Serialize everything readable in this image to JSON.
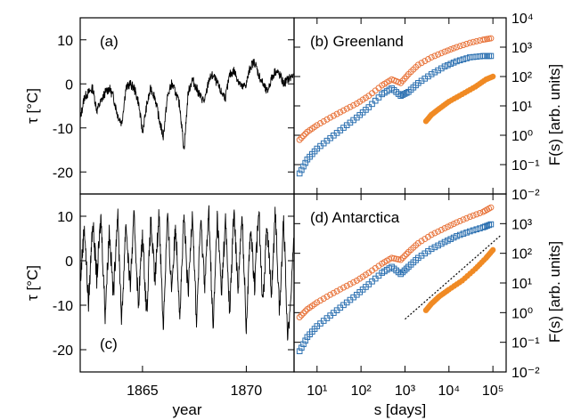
{
  "chart_data": [
    {
      "type": "line",
      "panel": "(a)",
      "xlabel": "",
      "ylabel": "τ [°C]",
      "xlim": [
        1862,
        1872.3
      ],
      "ylim": [
        -25,
        15
      ],
      "yticks": [
        10,
        0,
        -10,
        -20
      ],
      "xticks": [],
      "series": [
        {
          "x": [
            1862.0,
            1862.2,
            1862.4,
            1862.6,
            1862.8,
            1863.0,
            1863.2,
            1863.4,
            1863.6,
            1863.8,
            1864.0,
            1864.2,
            1864.4,
            1864.6,
            1864.8,
            1865.0,
            1865.2,
            1865.4,
            1865.6,
            1865.8,
            1866.0,
            1866.2,
            1866.4,
            1866.6,
            1866.8,
            1867.0,
            1867.2,
            1867.4,
            1867.6,
            1867.8,
            1868.0,
            1868.2,
            1868.4,
            1868.6,
            1868.8,
            1869.0,
            1869.2,
            1869.4,
            1869.6,
            1869.8,
            1870.0,
            1870.2,
            1870.4,
            1870.6,
            1870.8,
            1871.0,
            1871.2,
            1871.4,
            1871.6,
            1871.8,
            1872.0,
            1872.3
          ],
          "y": [
            -8,
            -3,
            -2,
            -1,
            -6,
            -4,
            -2,
            -1,
            -3,
            -7,
            -9,
            -1,
            0,
            -1,
            -4,
            -11,
            -5,
            -1,
            -3,
            -8,
            -12,
            -3,
            0,
            -2,
            -5,
            -15,
            -2,
            1,
            -1,
            -3,
            -4,
            1,
            2,
            0,
            -2,
            -3,
            2,
            3,
            1,
            -1,
            0,
            4,
            5,
            2,
            0,
            -2,
            1,
            3,
            2,
            0,
            1,
            2
          ]
        }
      ]
    },
    {
      "type": "scatter",
      "panel": "(b) Greenland",
      "xlabel": "",
      "ylabel": "F(s) [arb. units]",
      "yscale": "log",
      "xscale": "log",
      "xlim": [
        3,
        200000
      ],
      "ylim": [
        0.01,
        10000
      ],
      "ytick_labels": [
        "10⁴",
        "10³",
        "10²",
        "10¹",
        "10⁰",
        "10⁻¹",
        "10⁻²"
      ],
      "series": [
        {
          "marker": "open-circle",
          "color": "#e8743b",
          "x": [
            4,
            6,
            10,
            20,
            40,
            80,
            150,
            300,
            500,
            800,
            1200,
            2000,
            4000,
            8000,
            15000,
            30000,
            60000,
            90000
          ],
          "y": [
            0.7,
            1.3,
            2.2,
            4,
            7,
            12,
            22,
            50,
            80,
            60,
            120,
            250,
            450,
            700,
            1000,
            1400,
            1800,
            2000
          ]
        },
        {
          "marker": "open-square",
          "color": "#2a6fb0",
          "x": [
            4,
            6,
            10,
            20,
            40,
            80,
            150,
            300,
            500,
            800,
            1200,
            2000,
            4000,
            8000,
            15000,
            30000,
            60000,
            90000
          ],
          "y": [
            0.05,
            0.15,
            0.35,
            0.8,
            1.8,
            4,
            9,
            25,
            40,
            22,
            30,
            60,
            120,
            220,
            330,
            450,
            500,
            500
          ]
        },
        {
          "marker": "filled-circle",
          "color": "#f08a24",
          "x": [
            3000,
            4000,
            6000,
            10000,
            20000,
            40000,
            70000,
            100000
          ],
          "y": [
            3,
            5,
            8,
            14,
            25,
            45,
            80,
            100
          ]
        }
      ]
    },
    {
      "type": "line",
      "panel": "(c)",
      "xlabel": "year",
      "ylabel": "τ [°C]",
      "xlim": [
        1862,
        1872.3
      ],
      "ylim": [
        -25,
        15
      ],
      "yticks": [
        10,
        0,
        -10,
        -20
      ],
      "xticks": [
        1865,
        1870
      ],
      "series": [
        {
          "x": [
            1862.0,
            1862.2,
            1862.4,
            1862.6,
            1862.8,
            1863.0,
            1863.2,
            1863.4,
            1863.6,
            1863.8,
            1864.0,
            1864.2,
            1864.4,
            1864.6,
            1864.8,
            1865.0,
            1865.2,
            1865.4,
            1865.6,
            1865.8,
            1866.0,
            1866.2,
            1866.4,
            1866.6,
            1866.8,
            1867.0,
            1867.2,
            1867.4,
            1867.6,
            1867.8,
            1868.0,
            1868.2,
            1868.4,
            1868.6,
            1868.8,
            1869.0,
            1869.2,
            1869.4,
            1869.6,
            1869.8,
            1870.0,
            1870.2,
            1870.4,
            1870.6,
            1870.8,
            1871.0,
            1871.2,
            1871.4,
            1871.6,
            1871.8,
            1872.0,
            1872.3
          ],
          "y": [
            -5,
            8,
            -10,
            9,
            -4,
            10,
            -12,
            7,
            -8,
            11,
            -14,
            9,
            -6,
            10,
            -10,
            6,
            -12,
            9,
            -5,
            11,
            -15,
            10,
            -6,
            8,
            -12,
            10,
            -8,
            12,
            -14,
            9,
            -5,
            11,
            -16,
            10,
            -7,
            9,
            -12,
            11,
            -6,
            10,
            -15,
            8,
            -6,
            12,
            -10,
            9,
            -8,
            11,
            -12,
            10,
            -18,
            6
          ]
        }
      ]
    },
    {
      "type": "scatter",
      "panel": "(d) Antarctica",
      "xlabel": "s [days]",
      "ylabel": "F(s) [arb. units]",
      "yscale": "log",
      "xscale": "log",
      "xlim": [
        3,
        200000
      ],
      "ylim": [
        0.01,
        10000
      ],
      "xtick_labels": [
        "10¹",
        "10²",
        "10³",
        "10⁴",
        "10⁵"
      ],
      "ytick_labels": [
        "10³",
        "10²",
        "10¹",
        "10⁰",
        "10⁻¹",
        "10⁻²"
      ],
      "series": [
        {
          "marker": "open-circle",
          "color": "#e8743b",
          "x": [
            4,
            6,
            10,
            20,
            40,
            80,
            150,
            300,
            500,
            800,
            1200,
            2000,
            4000,
            8000,
            15000,
            30000,
            60000,
            90000
          ],
          "y": [
            0.7,
            1.3,
            2.2,
            4,
            7,
            12,
            22,
            45,
            70,
            60,
            110,
            220,
            420,
            700,
            1100,
            1700,
            2500,
            3500
          ]
        },
        {
          "marker": "open-square",
          "color": "#2a6fb0",
          "x": [
            4,
            6,
            10,
            20,
            40,
            80,
            150,
            300,
            500,
            800,
            1200,
            2000,
            4000,
            8000,
            15000,
            30000,
            60000,
            90000
          ],
          "y": [
            0.05,
            0.15,
            0.35,
            0.8,
            1.8,
            4,
            9,
            22,
            35,
            20,
            35,
            70,
            140,
            240,
            380,
            550,
            750,
            950
          ]
        },
        {
          "marker": "filled-circle",
          "color": "#f08a24",
          "x": [
            3000,
            4000,
            6000,
            10000,
            20000,
            40000,
            70000,
            100000
          ],
          "y": [
            1.2,
            2,
            3.5,
            6,
            12,
            30,
            70,
            130
          ]
        }
      ],
      "fit_line": {
        "style": "dotted",
        "x": [
          1000,
          150000
        ],
        "y": [
          0.6,
          400
        ]
      }
    }
  ]
}
